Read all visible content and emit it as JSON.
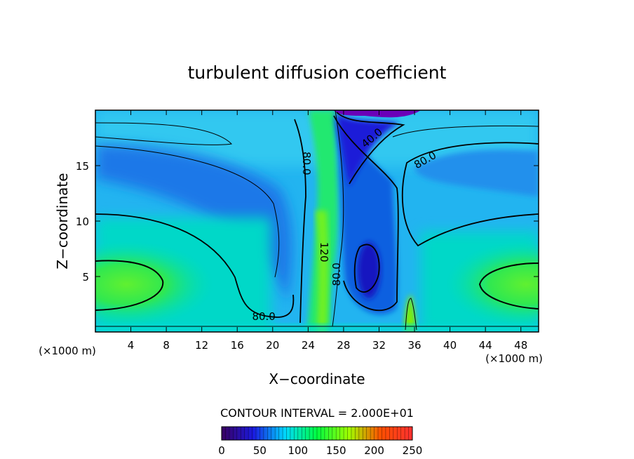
{
  "chart_data": {
    "type": "heatmap",
    "title": "turbulent diffusion coefficient",
    "xlabel": "X−coordinate",
    "ylabel": "Z−coordinate",
    "x_unit_left": "(×1000 m)",
    "x_unit_right": "(×1000 m)",
    "xlim": [
      0,
      50
    ],
    "ylim": [
      0,
      20
    ],
    "x_ticks": [
      4,
      8,
      12,
      16,
      20,
      24,
      28,
      32,
      36,
      40,
      44,
      48
    ],
    "y_ticks": [
      5,
      10,
      15
    ],
    "contour_interval_text": "CONTOUR INTERVAL = 2.000E+01",
    "contour_labels": [
      {
        "text": "80.0",
        "x": 19.0,
        "y": 1.4
      },
      {
        "text": "80.0",
        "x": 23.8,
        "y": 15.2
      },
      {
        "text": "120",
        "x": 25.8,
        "y": 7.2
      },
      {
        "text": "80.0",
        "x": 27.2,
        "y": 5.2
      },
      {
        "text": "40.0",
        "x": 31.2,
        "y": 17.5
      },
      {
        "text": "80.0",
        "x": 37.2,
        "y": 15.5
      }
    ],
    "colorbar": {
      "min": 0,
      "max": 250,
      "ticks": [
        0,
        50,
        100,
        150,
        200,
        250
      ],
      "stops": [
        "#3a0060",
        "#1a1ae0",
        "#00d8ff",
        "#00ff40",
        "#a0ff00",
        "#ff5000",
        "#ff3030"
      ]
    },
    "features": [
      {
        "kind": "low-value-core",
        "x": 30.5,
        "z": 6.0,
        "value": 40
      },
      {
        "kind": "low-value-core",
        "x": 29.5,
        "z": 19.5,
        "value": 10
      },
      {
        "kind": "high-value-core",
        "x": 3.5,
        "z": 4.2,
        "value": 150
      },
      {
        "kind": "high-value-core",
        "x": 47,
        "z": 4.2,
        "value": 150
      },
      {
        "kind": "high-value-plume",
        "x": 25.5,
        "z": 10,
        "value": 140
      },
      {
        "kind": "high-value-plume",
        "x": 35.5,
        "z": 1.5,
        "value": 150
      }
    ]
  }
}
